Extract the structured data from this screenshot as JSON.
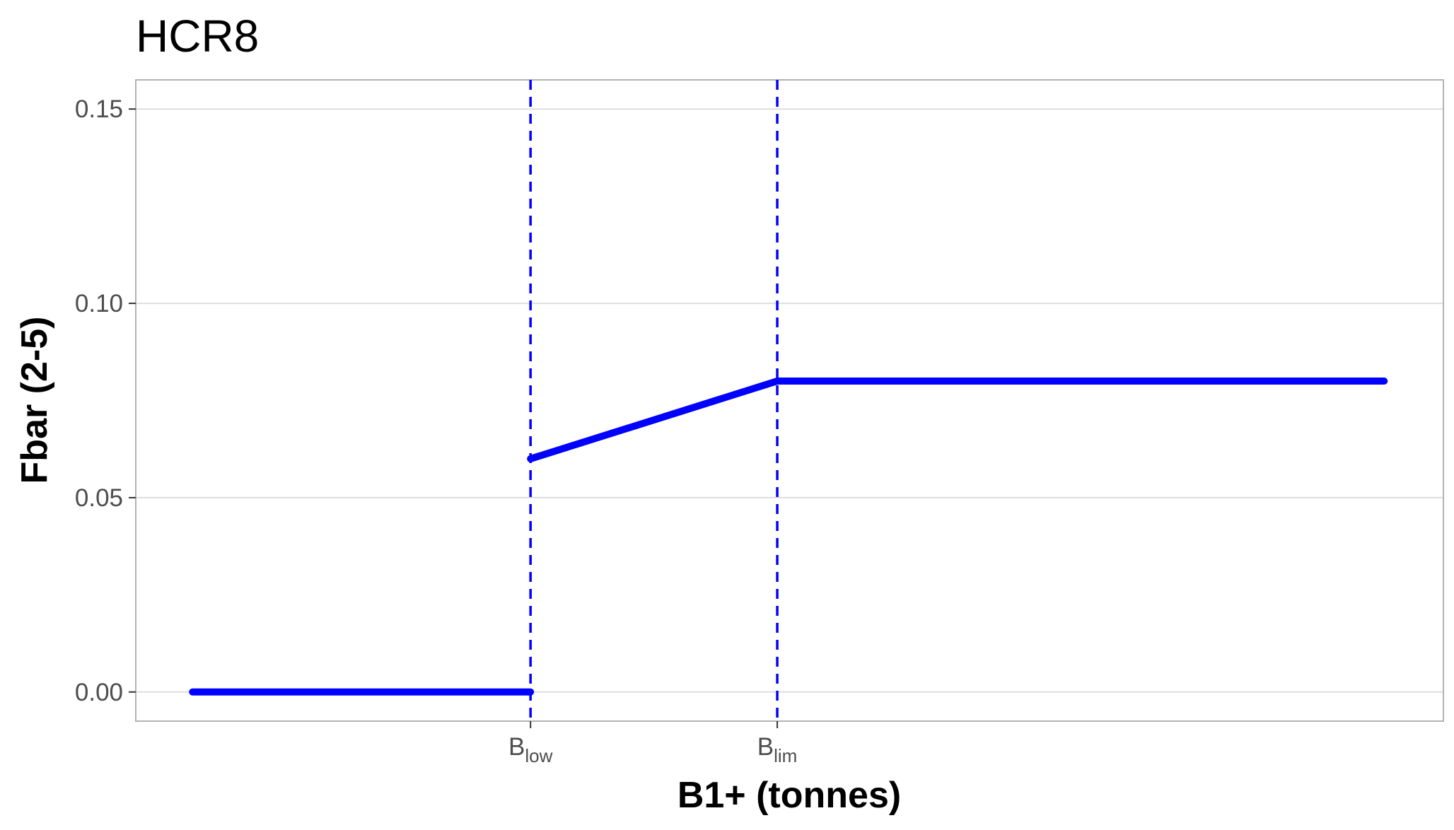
{
  "chart_data": {
    "type": "line",
    "title": "HCR8",
    "xlabel": "B1+ (tonnes)",
    "ylabel": "Fbar (2-5)",
    "ylim": [
      -0.0075,
      0.1575
    ],
    "xlim": [
      -0.23,
      5.07
    ],
    "grid": "horizontal major gridlines",
    "y_ticks": [
      {
        "value": 0.0,
        "label": "0.00"
      },
      {
        "value": 0.05,
        "label": "0.05"
      },
      {
        "value": 0.1,
        "label": "0.10"
      },
      {
        "value": 0.15,
        "label": "0.15"
      }
    ],
    "x_ticks": [
      {
        "value": 1.37,
        "main": "B",
        "sub": "low"
      },
      {
        "value": 2.37,
        "main": "B",
        "sub": "lim"
      }
    ],
    "reference_lines": [
      {
        "x": 1.37,
        "style": "dashed",
        "color": "#0000ff"
      },
      {
        "x": 2.37,
        "style": "dashed",
        "color": "#0000ff"
      }
    ],
    "series": [
      {
        "color": "#0000ff",
        "segments": [
          [
            {
              "x": 0.0,
              "y": 0.0
            },
            {
              "x": 1.37,
              "y": 0.0
            }
          ],
          [
            {
              "x": 1.37,
              "y": 0.06
            },
            {
              "x": 2.37,
              "y": 0.08
            },
            {
              "x": 4.83,
              "y": 0.08
            }
          ]
        ]
      }
    ]
  }
}
